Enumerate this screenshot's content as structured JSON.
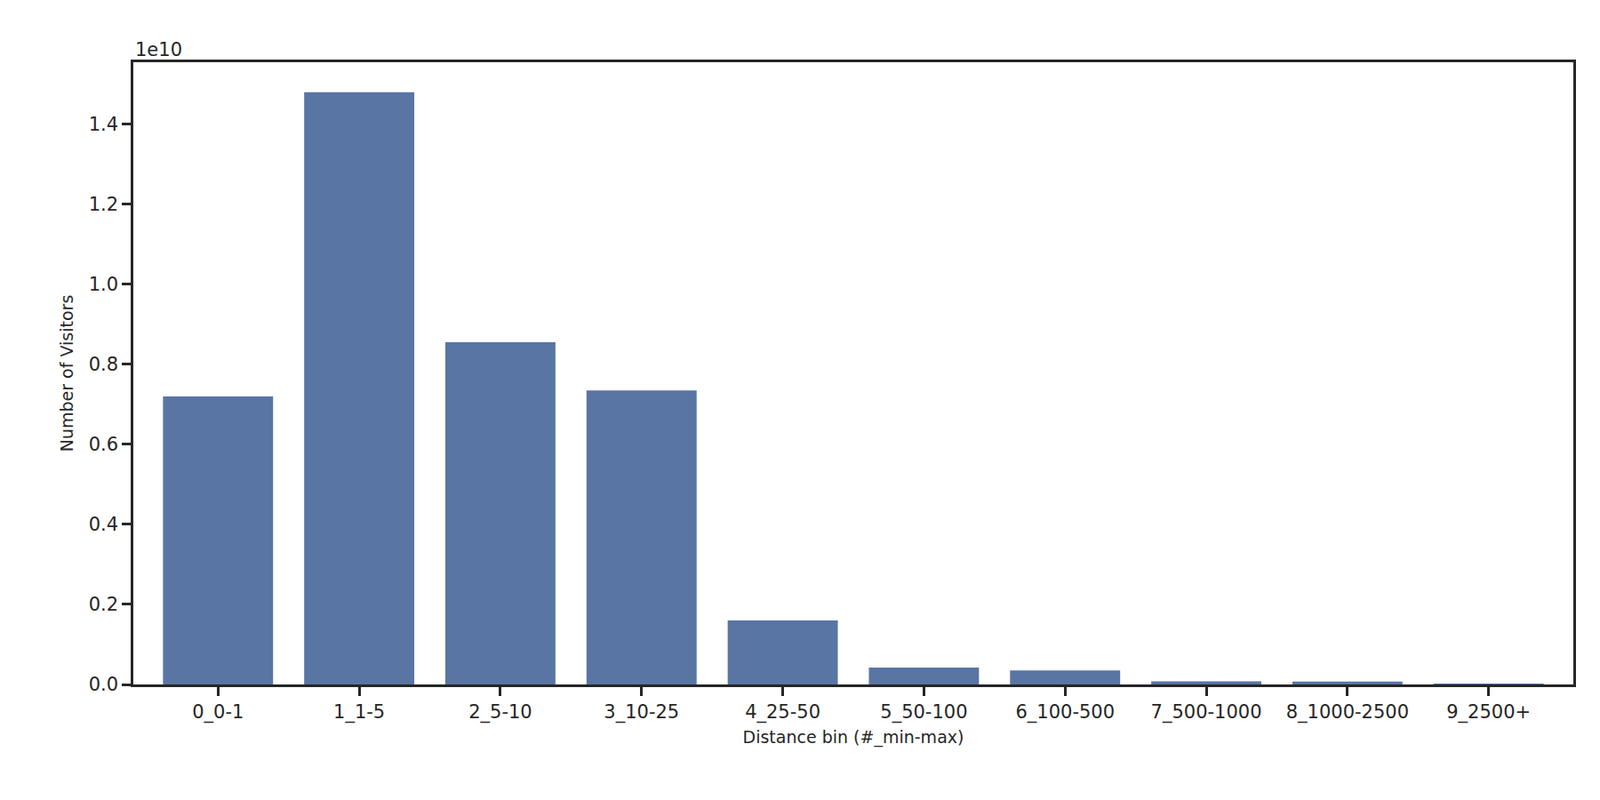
{
  "chart_data": {
    "type": "bar",
    "x_label": "Distance bin (#_min-max)",
    "y_label": "Number of Visitors",
    "annotations": [
      "1e10"
    ],
    "categories": [
      "0_0-1",
      "1_1-5",
      "2_5-10",
      "3_10-25",
      "4_25-50",
      "5_50-100",
      "6_100-500",
      "7_500-1000",
      "8_1000-2500",
      "9_2500+"
    ],
    "values": [
      0.72,
      1.48,
      0.855,
      0.735,
      0.16,
      0.042,
      0.035,
      0.008,
      0.007,
      0.001
    ],
    "color": "#5975a4",
    "ylim": [
      0,
      1.555
    ],
    "yticks": [
      {
        "value": 0,
        "label": "0.0"
      },
      {
        "value": 0.2,
        "label": "0.2"
      },
      {
        "value": 0.4,
        "label": "0.4"
      },
      {
        "value": 0.6,
        "label": "0.6"
      },
      {
        "value": 0.8,
        "label": "0.8"
      },
      {
        "value": 1.0,
        "label": "1.0"
      },
      {
        "value": 1.2,
        "label": "1.2"
      },
      {
        "value": 1.4,
        "label": "1.4"
      }
    ],
    "grid": false
  }
}
